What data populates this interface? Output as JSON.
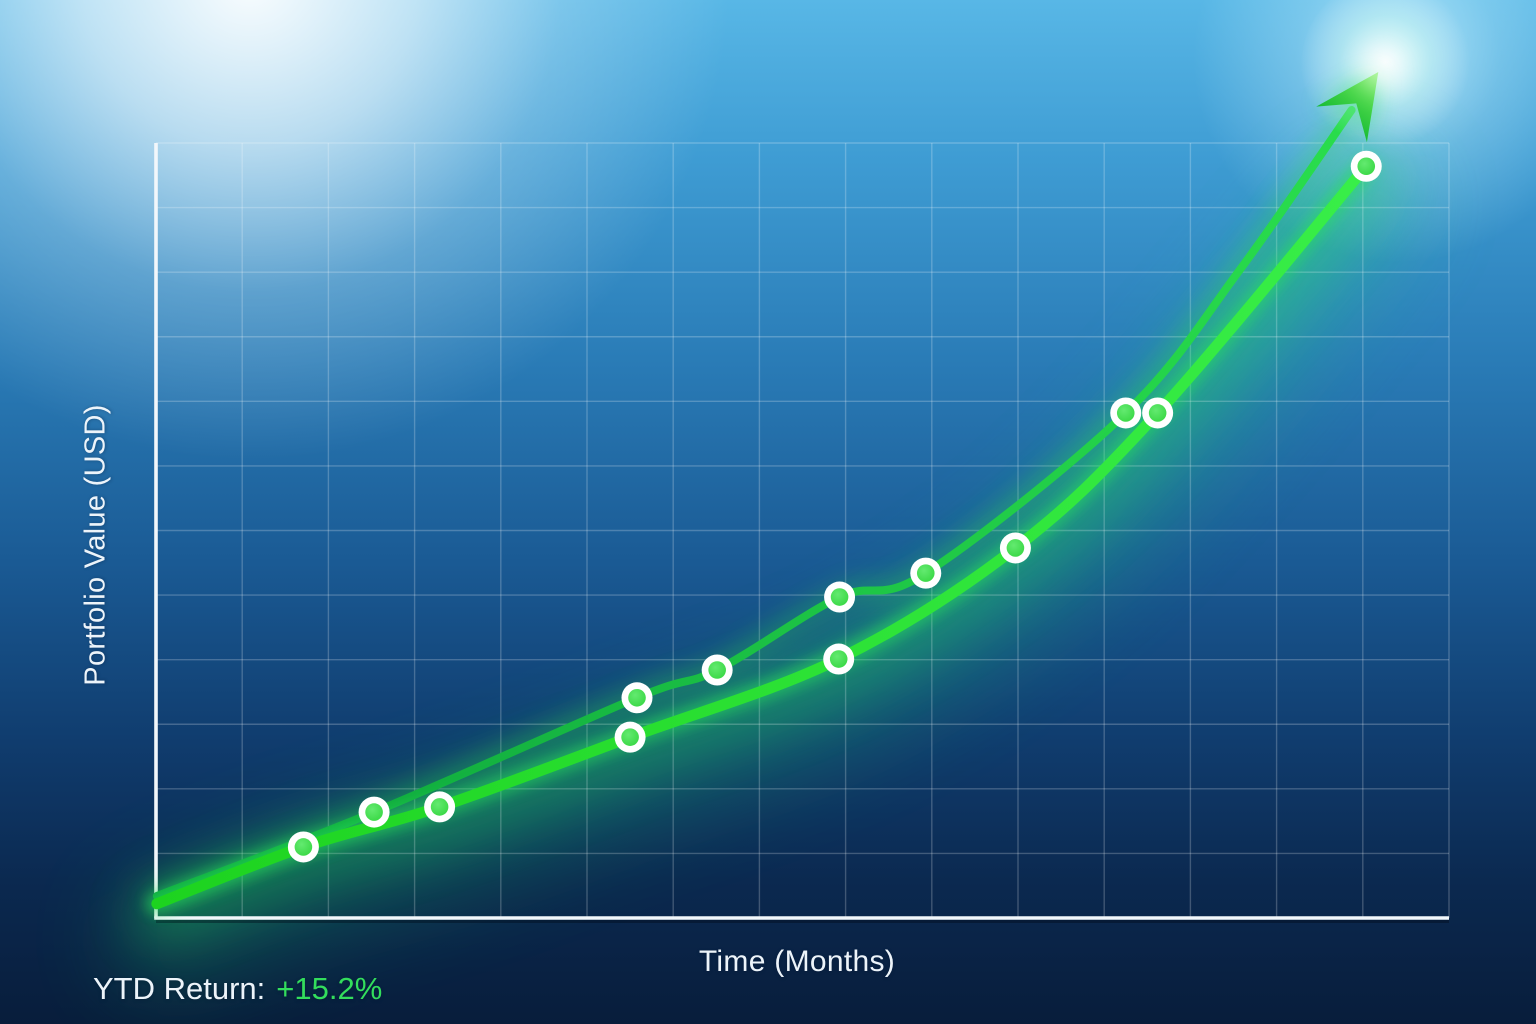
{
  "labels": {
    "x_axis": "Time (Months)",
    "y_axis": "Portfolio Value (USD)",
    "footer_label": "YTD Return:",
    "footer_value": "+15.2%"
  },
  "colors": {
    "text": "#edf4fa",
    "footer_value": "#33dd5c",
    "axis": "#f2f7fb",
    "grid": "rgba(255,255,255,0.22)",
    "bg_top": "#58b7e6",
    "bg_upper": "#3f9dd4",
    "bg_mid": "#2a7cb7",
    "bg_lower": "#1a5a94",
    "bg_deep": "#103d6f",
    "bg_darker": "#0b2950",
    "bg_bottom": "#081d3b",
    "sun_glow": "#ffffff",
    "arrow_area_glow": "#cdf5ff",
    "portfolio_line_start": "#1dd31f",
    "portfolio_line_end": "#3af04b",
    "portfolio_glow": "#27e25c",
    "portfolio_haze": "#1fd46a",
    "benchmark_line_start": "#0ca33c",
    "benchmark_line_end": "#2ce24e",
    "marker_ring": "#ffffff",
    "marker_fill": "#38d743",
    "marker_fill_light": "#63ea70",
    "arrow_fill_dark": "#0db630",
    "arrow_fill_light": "#7df25e"
  },
  "chart_data": {
    "type": "line",
    "title": "",
    "xlabel": "Time (Months)",
    "ylabel": "Portfolio Value (USD)",
    "x_unit": "months",
    "x_range": [
      0,
      15
    ],
    "y_range": [
      0,
      12
    ],
    "tick_labels_visible": false,
    "legend": "none",
    "grid": {
      "visible": true,
      "x_divisions": 15,
      "y_divisions": 12
    },
    "annotation": {
      "label": "YTD Return:",
      "value": "+15.2%"
    },
    "series": [
      {
        "name": "portfolio-value",
        "style": "bright-green-glow",
        "ends_with": "dot",
        "points": [
          [
            0.01,
            0.22
          ],
          [
            1.71,
            1.1
          ],
          [
            3.29,
            1.72
          ],
          [
            5.5,
            2.8
          ],
          [
            7.92,
            4.01
          ],
          [
            9.97,
            5.73
          ],
          [
            11.62,
            7.82
          ],
          [
            14.04,
            11.64
          ]
        ],
        "marker_indices": [
          1,
          2,
          3,
          4,
          5,
          6,
          7
        ]
      },
      {
        "name": "trend-benchmark",
        "style": "medium-green",
        "ends_with": "arrow",
        "points": [
          [
            0.01,
            0.34
          ],
          [
            2.53,
            1.64
          ],
          [
            5.58,
            3.41
          ],
          [
            6.51,
            3.84
          ],
          [
            7.93,
            4.97
          ],
          [
            8.93,
            5.34
          ],
          [
            11.25,
            7.82
          ],
          [
            12.57,
            10.03
          ],
          [
            13.87,
            12.51
          ]
        ],
        "marker_indices": [
          1,
          2,
          3,
          4,
          5,
          6
        ],
        "arrow_tip": [
          14.18,
          13.1
        ]
      }
    ]
  }
}
